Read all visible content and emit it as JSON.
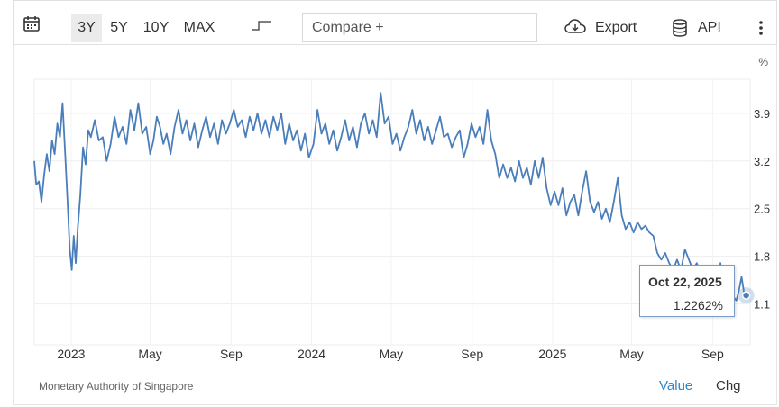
{
  "toolbar": {
    "calendar_icon": "calendar-icon",
    "ranges": [
      "3Y",
      "5Y",
      "10Y",
      "MAX"
    ],
    "active_range": "3Y",
    "chart_type_icon": "step-line-icon",
    "compare_placeholder": "Compare +",
    "export_label": "Export",
    "export_icon": "cloud-download-icon",
    "api_label": "API",
    "api_icon": "database-icon",
    "more_icon": "kebab-menu-icon"
  },
  "footer": {
    "source": "Monetary Authority of Singapore",
    "tabs": [
      "Value",
      "Chg"
    ],
    "active_tab": "Value"
  },
  "tooltip": {
    "date": "Oct 22, 2025",
    "value": "1.2262%"
  },
  "colors": {
    "line": "#4a7ebb",
    "active_tab": "#2f86c9"
  },
  "chart_data": {
    "type": "line",
    "unit_label": "%",
    "x_labels": [
      "2023",
      "May",
      "Sep",
      "2024",
      "May",
      "Sep",
      "2025",
      "May",
      "Sep"
    ],
    "x_label_dates": [
      "2023-01-01",
      "2023-05-01",
      "2023-09-01",
      "2024-01-01",
      "2024-05-01",
      "2024-09-01",
      "2025-01-01",
      "2025-05-01",
      "2025-09-01"
    ],
    "y_ticks": [
      1.1,
      1.8,
      2.5,
      3.2,
      3.9
    ],
    "y_tick_labels": [
      "1.1",
      "1.8",
      "2.5",
      "3.2",
      "3.9"
    ],
    "ylim": [
      0.5,
      4.4
    ],
    "xlim": [
      "2022-11-06",
      "2025-10-28"
    ],
    "grid": true,
    "series": [
      {
        "points": [
          [
            "2022-11-06",
            3.2
          ],
          [
            "2022-11-09",
            2.85
          ],
          [
            "2022-11-13",
            2.9
          ],
          [
            "2022-11-17",
            2.6
          ],
          [
            "2022-11-21",
            3.0
          ],
          [
            "2022-11-25",
            3.3
          ],
          [
            "2022-11-29",
            3.05
          ],
          [
            "2022-12-03",
            3.5
          ],
          [
            "2022-12-07",
            3.3
          ],
          [
            "2022-12-11",
            3.75
          ],
          [
            "2022-12-15",
            3.55
          ],
          [
            "2022-12-19",
            4.05
          ],
          [
            "2022-12-23",
            3.3
          ],
          [
            "2022-12-27",
            2.5
          ],
          [
            "2022-12-30",
            1.9
          ],
          [
            "2023-01-02",
            1.6
          ],
          [
            "2023-01-05",
            2.1
          ],
          [
            "2023-01-08",
            1.7
          ],
          [
            "2023-01-11",
            2.2
          ],
          [
            "2023-01-15",
            2.7
          ],
          [
            "2023-01-19",
            3.4
          ],
          [
            "2023-01-23",
            3.15
          ],
          [
            "2023-01-27",
            3.65
          ],
          [
            "2023-01-31",
            3.55
          ],
          [
            "2023-02-06",
            3.8
          ],
          [
            "2023-02-12",
            3.5
          ],
          [
            "2023-02-18",
            3.55
          ],
          [
            "2023-02-24",
            3.2
          ],
          [
            "2023-03-02",
            3.45
          ],
          [
            "2023-03-08",
            3.85
          ],
          [
            "2023-03-14",
            3.55
          ],
          [
            "2023-03-20",
            3.7
          ],
          [
            "2023-03-26",
            3.45
          ],
          [
            "2023-04-01",
            3.95
          ],
          [
            "2023-04-07",
            3.65
          ],
          [
            "2023-04-13",
            4.05
          ],
          [
            "2023-04-19",
            3.6
          ],
          [
            "2023-04-25",
            3.7
          ],
          [
            "2023-05-01",
            3.3
          ],
          [
            "2023-05-06",
            3.5
          ],
          [
            "2023-05-11",
            3.85
          ],
          [
            "2023-05-16",
            3.7
          ],
          [
            "2023-05-21",
            3.45
          ],
          [
            "2023-05-26",
            3.6
          ],
          [
            "2023-06-01",
            3.3
          ],
          [
            "2023-06-07",
            3.7
          ],
          [
            "2023-06-13",
            3.95
          ],
          [
            "2023-06-19",
            3.6
          ],
          [
            "2023-06-25",
            3.8
          ],
          [
            "2023-07-01",
            3.5
          ],
          [
            "2023-07-07",
            3.75
          ],
          [
            "2023-07-13",
            3.4
          ],
          [
            "2023-07-19",
            3.65
          ],
          [
            "2023-07-25",
            3.85
          ],
          [
            "2023-07-31",
            3.55
          ],
          [
            "2023-08-06",
            3.75
          ],
          [
            "2023-08-12",
            3.45
          ],
          [
            "2023-08-18",
            3.8
          ],
          [
            "2023-08-24",
            3.6
          ],
          [
            "2023-08-30",
            3.75
          ],
          [
            "2023-09-05",
            3.95
          ],
          [
            "2023-09-11",
            3.7
          ],
          [
            "2023-09-17",
            3.8
          ],
          [
            "2023-09-23",
            3.55
          ],
          [
            "2023-09-29",
            3.85
          ],
          [
            "2023-10-05",
            3.65
          ],
          [
            "2023-10-11",
            3.9
          ],
          [
            "2023-10-17",
            3.6
          ],
          [
            "2023-10-23",
            3.8
          ],
          [
            "2023-10-29",
            3.55
          ],
          [
            "2023-11-04",
            3.85
          ],
          [
            "2023-11-10",
            3.65
          ],
          [
            "2023-11-16",
            3.9
          ],
          [
            "2023-11-22",
            3.45
          ],
          [
            "2023-11-28",
            3.75
          ],
          [
            "2023-12-04",
            3.5
          ],
          [
            "2023-12-10",
            3.65
          ],
          [
            "2023-12-16",
            3.35
          ],
          [
            "2023-12-22",
            3.6
          ],
          [
            "2023-12-28",
            3.25
          ],
          [
            "2024-01-04",
            3.45
          ],
          [
            "2024-01-10",
            3.95
          ],
          [
            "2024-01-16",
            3.6
          ],
          [
            "2024-01-22",
            3.75
          ],
          [
            "2024-01-28",
            3.45
          ],
          [
            "2024-02-03",
            3.65
          ],
          [
            "2024-02-09",
            3.35
          ],
          [
            "2024-02-15",
            3.55
          ],
          [
            "2024-02-21",
            3.8
          ],
          [
            "2024-02-27",
            3.5
          ],
          [
            "2024-03-04",
            3.7
          ],
          [
            "2024-03-10",
            3.4
          ],
          [
            "2024-03-16",
            3.75
          ],
          [
            "2024-03-22",
            3.9
          ],
          [
            "2024-03-28",
            3.6
          ],
          [
            "2024-04-03",
            3.8
          ],
          [
            "2024-04-09",
            3.55
          ],
          [
            "2024-04-15",
            4.2
          ],
          [
            "2024-04-21",
            3.75
          ],
          [
            "2024-04-27",
            3.85
          ],
          [
            "2024-05-03",
            3.45
          ],
          [
            "2024-05-09",
            3.6
          ],
          [
            "2024-05-15",
            3.35
          ],
          [
            "2024-05-21",
            3.55
          ],
          [
            "2024-05-27",
            3.7
          ],
          [
            "2024-06-02",
            3.95
          ],
          [
            "2024-06-08",
            3.6
          ],
          [
            "2024-06-14",
            3.8
          ],
          [
            "2024-06-20",
            3.5
          ],
          [
            "2024-06-26",
            3.7
          ],
          [
            "2024-07-02",
            3.45
          ],
          [
            "2024-07-08",
            3.65
          ],
          [
            "2024-07-14",
            3.85
          ],
          [
            "2024-07-20",
            3.55
          ],
          [
            "2024-07-26",
            3.6
          ],
          [
            "2024-08-01",
            3.4
          ],
          [
            "2024-08-07",
            3.55
          ],
          [
            "2024-08-13",
            3.65
          ],
          [
            "2024-08-19",
            3.25
          ],
          [
            "2024-08-25",
            3.45
          ],
          [
            "2024-08-31",
            3.75
          ],
          [
            "2024-09-06",
            3.55
          ],
          [
            "2024-09-12",
            3.7
          ],
          [
            "2024-09-18",
            3.45
          ],
          [
            "2024-09-24",
            3.95
          ],
          [
            "2024-09-30",
            3.5
          ],
          [
            "2024-10-06",
            3.3
          ],
          [
            "2024-10-12",
            2.95
          ],
          [
            "2024-10-18",
            3.15
          ],
          [
            "2024-10-24",
            2.95
          ],
          [
            "2024-10-30",
            3.1
          ],
          [
            "2024-11-05",
            2.9
          ],
          [
            "2024-11-11",
            3.2
          ],
          [
            "2024-11-17",
            2.95
          ],
          [
            "2024-11-23",
            3.1
          ],
          [
            "2024-11-29",
            2.85
          ],
          [
            "2024-12-05",
            3.2
          ],
          [
            "2024-12-11",
            2.95
          ],
          [
            "2024-12-17",
            3.25
          ],
          [
            "2024-12-23",
            2.8
          ],
          [
            "2024-12-29",
            2.55
          ],
          [
            "2025-01-04",
            2.75
          ],
          [
            "2025-01-10",
            2.55
          ],
          [
            "2025-01-16",
            2.8
          ],
          [
            "2025-01-22",
            2.4
          ],
          [
            "2025-01-28",
            2.6
          ],
          [
            "2025-02-03",
            2.7
          ],
          [
            "2025-02-09",
            2.4
          ],
          [
            "2025-02-15",
            2.75
          ],
          [
            "2025-02-21",
            3.05
          ],
          [
            "2025-02-27",
            2.6
          ],
          [
            "2025-03-05",
            2.45
          ],
          [
            "2025-03-11",
            2.6
          ],
          [
            "2025-03-17",
            2.35
          ],
          [
            "2025-03-23",
            2.5
          ],
          [
            "2025-03-29",
            2.3
          ],
          [
            "2025-04-04",
            2.6
          ],
          [
            "2025-04-10",
            2.95
          ],
          [
            "2025-04-16",
            2.4
          ],
          [
            "2025-04-22",
            2.2
          ],
          [
            "2025-04-28",
            2.3
          ],
          [
            "2025-05-04",
            2.15
          ],
          [
            "2025-05-10",
            2.3
          ],
          [
            "2025-05-16",
            2.2
          ],
          [
            "2025-05-22",
            2.25
          ],
          [
            "2025-05-28",
            2.15
          ],
          [
            "2025-06-03",
            2.1
          ],
          [
            "2025-06-09",
            1.85
          ],
          [
            "2025-06-15",
            1.75
          ],
          [
            "2025-06-21",
            1.85
          ],
          [
            "2025-06-27",
            1.7
          ],
          [
            "2025-07-03",
            1.6
          ],
          [
            "2025-07-09",
            1.75
          ],
          [
            "2025-07-15",
            1.6
          ],
          [
            "2025-07-21",
            1.9
          ],
          [
            "2025-07-27",
            1.75
          ],
          [
            "2025-08-02",
            1.6
          ],
          [
            "2025-08-08",
            1.7
          ],
          [
            "2025-08-14",
            1.55
          ],
          [
            "2025-08-20",
            1.4
          ],
          [
            "2025-08-26",
            1.55
          ],
          [
            "2025-09-01",
            1.25
          ],
          [
            "2025-09-05",
            0.95
          ],
          [
            "2025-09-09",
            1.2
          ],
          [
            "2025-09-13",
            1.7
          ],
          [
            "2025-09-17",
            1.3
          ],
          [
            "2025-09-21",
            1.45
          ],
          [
            "2025-09-25",
            1.35
          ],
          [
            "2025-09-29",
            1.05
          ],
          [
            "2025-10-03",
            1.2
          ],
          [
            "2025-10-07",
            1.15
          ],
          [
            "2025-10-11",
            1.3
          ],
          [
            "2025-10-15",
            1.5
          ],
          [
            "2025-10-19",
            1.25
          ],
          [
            "2025-10-22",
            1.2262
          ]
        ]
      }
    ]
  }
}
